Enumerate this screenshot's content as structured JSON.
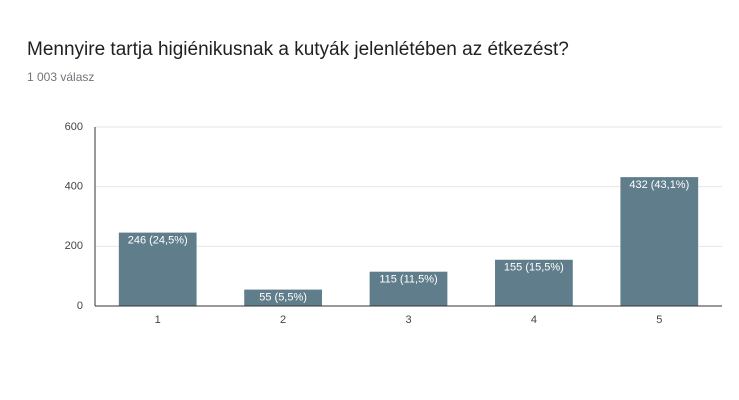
{
  "chart_data": {
    "type": "bar",
    "title": "Mennyire tartja higiénikusnak a kutyák jelenlétében az étkezést?",
    "subtitle": "1 003 válasz",
    "categories": [
      "1",
      "2",
      "3",
      "4",
      "5"
    ],
    "values": [
      246,
      55,
      115,
      155,
      432
    ],
    "value_labels": [
      "246 (24,5%)",
      "55 (5,5%)",
      "115 (11,5%)",
      "155 (15,5%)",
      "432 (43,1%)"
    ],
    "color": "#607d8b",
    "ylim": [
      0,
      600
    ],
    "yticks": [
      0,
      200,
      400,
      600
    ],
    "grid": true
  }
}
